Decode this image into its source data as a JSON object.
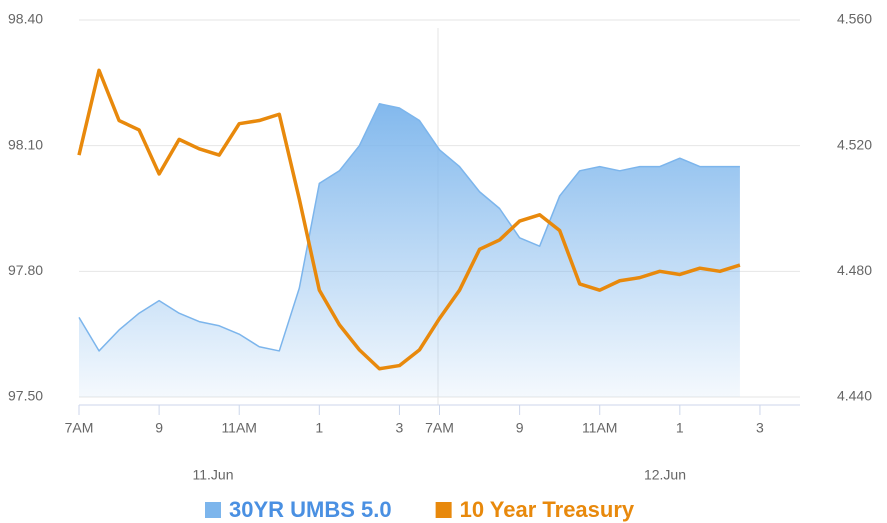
{
  "chart_data": {
    "type": "line",
    "x": [
      0,
      0.5,
      1,
      1.5,
      2,
      2.5,
      3,
      3.5,
      4,
      4.5,
      5,
      5.5,
      6,
      6.5,
      7,
      7.5,
      8,
      8.5,
      9,
      9.5,
      10,
      10.5,
      11,
      11.5,
      12,
      12.5,
      13,
      13.5,
      14,
      14.5,
      15,
      15.5,
      16,
      16.5
    ],
    "xlim": [
      0,
      18
    ],
    "xticks": [
      {
        "value": 0,
        "label": "7AM"
      },
      {
        "value": 2,
        "label": "9"
      },
      {
        "value": 4,
        "label": "11AM"
      },
      {
        "value": 6,
        "label": "1"
      },
      {
        "value": 8,
        "label": "3"
      },
      {
        "value": 9,
        "label": "7AM"
      },
      {
        "value": 11,
        "label": "9"
      },
      {
        "value": 13,
        "label": "11AM"
      },
      {
        "value": 15,
        "label": "1"
      },
      {
        "value": 17,
        "label": "3"
      }
    ],
    "day_labels": [
      "11.Jun",
      "12.Jun"
    ],
    "ylim": [
      97.5,
      98.4
    ],
    "yticks": [
      {
        "value": 97.5,
        "label": "97.50"
      },
      {
        "value": 97.8,
        "label": "97.80"
      },
      {
        "value": 98.1,
        "label": "98.10"
      },
      {
        "value": 98.4,
        "label": "98.40"
      }
    ],
    "y2lim": [
      4.44,
      4.56
    ],
    "y2ticks": [
      {
        "value": 4.44,
        "label": "4.440"
      },
      {
        "value": 4.48,
        "label": "4.480"
      },
      {
        "value": 4.52,
        "label": "4.520"
      },
      {
        "value": 4.56,
        "label": "4.560"
      }
    ],
    "grid": true,
    "legend": "bottom",
    "series": [
      {
        "name": "30YR UMBS 5.0",
        "color": "#7cb5ec",
        "fill": "area",
        "values": [
          97.69,
          97.61,
          97.66,
          97.7,
          97.73,
          97.7,
          97.68,
          97.67,
          97.65,
          97.62,
          97.61,
          97.76,
          98.01,
          98.04,
          98.1,
          98.2,
          98.19,
          98.16,
          98.09,
          98.05,
          97.99,
          97.95,
          97.88,
          97.86,
          97.98,
          98.04,
          98.05,
          98.04,
          98.05,
          98.05,
          98.07,
          98.05,
          98.05,
          98.05
        ]
      },
      {
        "name": "10 Year Treasury",
        "color": "#e8890c",
        "axis": "y2",
        "values": [
          4.517,
          4.544,
          4.528,
          4.525,
          4.511,
          4.522,
          4.519,
          4.517,
          4.527,
          4.528,
          4.53,
          4.503,
          4.474,
          4.463,
          4.455,
          4.449,
          4.45,
          4.455,
          4.465,
          4.474,
          4.487,
          4.49,
          4.496,
          4.498,
          4.493,
          4.476,
          4.474,
          4.477,
          4.478,
          4.48,
          4.479,
          4.481,
          4.48,
          4.482
        ]
      }
    ]
  }
}
